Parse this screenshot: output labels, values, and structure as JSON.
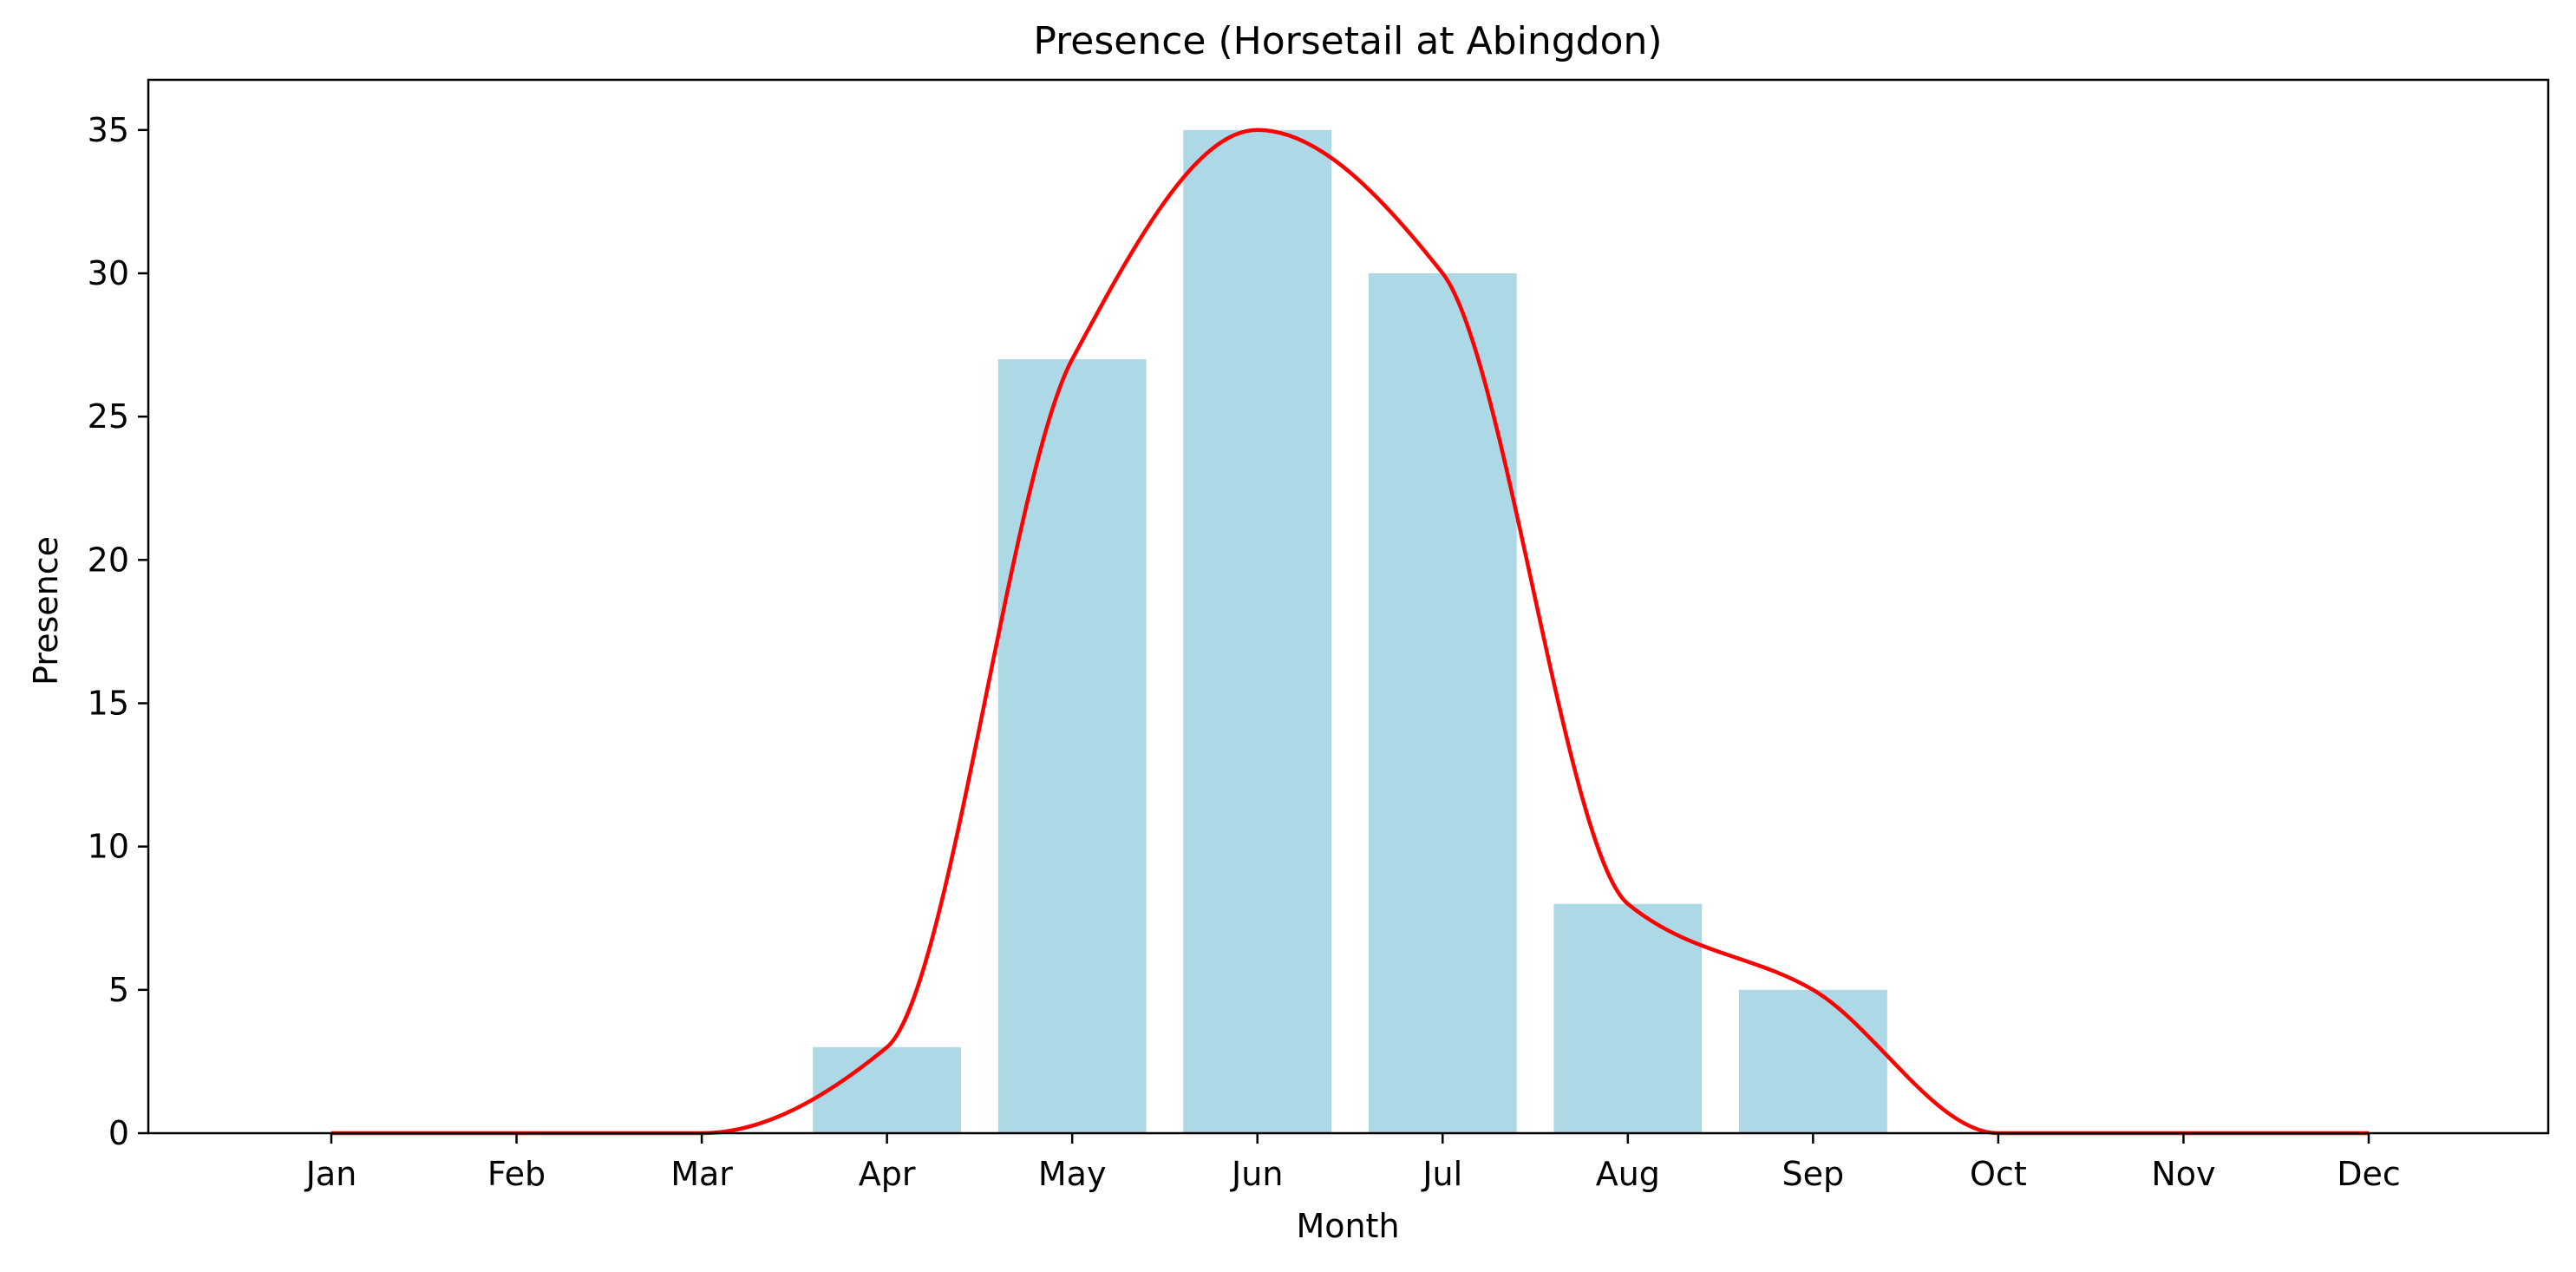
{
  "chart_data": {
    "type": "bar",
    "title": "Presence (Horsetail at Abingdon)",
    "xlabel": "Month",
    "ylabel": "Presence",
    "categories": [
      "Jan",
      "Feb",
      "Mar",
      "Apr",
      "May",
      "Jun",
      "Jul",
      "Aug",
      "Sep",
      "Oct",
      "Nov",
      "Dec"
    ],
    "values": [
      0,
      0,
      0,
      3,
      27,
      35,
      30,
      8,
      5,
      0,
      0,
      0
    ],
    "bar_color": "#add8e6",
    "line_color": "#ff0000",
    "overlay": "smoothed line through monthly values",
    "ylim": [
      0,
      36.75
    ],
    "yticks": [
      0,
      5,
      10,
      15,
      20,
      25,
      30,
      35
    ],
    "grid": false,
    "legend": "none"
  }
}
